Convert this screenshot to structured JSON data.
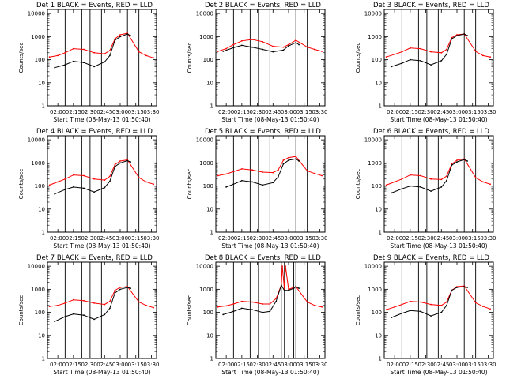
{
  "figure": {
    "ylabel": "Counts/sec",
    "xlabel": "Start Time (08-May-13 01:50:40)",
    "x_ticks": [
      "02:00",
      "02:15",
      "02:30",
      "02:45",
      "03:00",
      "03:15",
      "03:30"
    ],
    "y_ticks": [
      "1",
      "10",
      "100",
      "1000",
      "10000"
    ],
    "colors": {
      "events": "#000000",
      "lld": "#ff0000"
    }
  },
  "chart_data": [
    {
      "type": "line",
      "title": "Det 1  BLACK = Events, RED = LLD",
      "xlabel": "Start Time (08-May-13 01:50:40)",
      "ylabel": "Counts/sec",
      "x_range": [
        "01:50",
        "03:35"
      ],
      "y_range": [
        1,
        15000
      ],
      "y_scale": "log",
      "vertical_markers": [
        "02:07",
        "02:23",
        "02:31",
        "02:42",
        "03:07",
        "03:18"
      ],
      "series": [
        {
          "name": "Events",
          "color": "#000000",
          "x": [
            "01:57",
            "02:07",
            "02:15",
            "02:25",
            "02:35",
            "02:45",
            "02:50",
            "02:55",
            "03:00",
            "03:07",
            "03:10"
          ],
          "y": [
            45,
            60,
            85,
            75,
            50,
            80,
            150,
            700,
            1000,
            1300,
            1100
          ]
        },
        {
          "name": "LLD",
          "color": "#ff0000",
          "x": [
            "01:52",
            "02:00",
            "02:07",
            "02:15",
            "02:25",
            "02:35",
            "02:45",
            "02:50",
            "02:55",
            "03:00",
            "03:07",
            "03:18",
            "03:25",
            "03:32"
          ],
          "y": [
            130,
            150,
            200,
            300,
            280,
            200,
            180,
            250,
            800,
            1200,
            1400,
            220,
            150,
            120
          ]
        }
      ]
    },
    {
      "type": "line",
      "title": "Det 2  BLACK = Events, RED = LLD",
      "xlabel": "Start Time (08-May-13 01:50:40)",
      "ylabel": "Counts/sec",
      "x_range": [
        "01:50",
        "03:35"
      ],
      "y_range": [
        1,
        15000
      ],
      "y_scale": "log",
      "vertical_markers": [
        "02:07",
        "02:23",
        "02:31",
        "02:42",
        "03:07",
        "03:18"
      ],
      "series": [
        {
          "name": "Events",
          "color": "#000000",
          "x": [
            "01:57",
            "02:07",
            "02:15",
            "02:25",
            "02:35",
            "02:45",
            "02:55",
            "03:00",
            "03:07",
            "03:10"
          ],
          "y": [
            230,
            330,
            420,
            350,
            280,
            220,
            260,
            400,
            550,
            450
          ]
        },
        {
          "name": "LLD",
          "color": "#ff0000",
          "x": [
            "01:52",
            "02:00",
            "02:07",
            "02:15",
            "02:25",
            "02:35",
            "02:45",
            "02:55",
            "03:00",
            "03:07",
            "03:18",
            "03:25",
            "03:32"
          ],
          "y": [
            230,
            300,
            450,
            650,
            750,
            600,
            380,
            350,
            450,
            700,
            350,
            280,
            230
          ]
        }
      ]
    },
    {
      "type": "line",
      "title": "Det 3  BLACK = Events, RED = LLD",
      "xlabel": "Start Time (08-May-13 01:50:40)",
      "ylabel": "Counts/sec",
      "x_range": [
        "01:50",
        "03:35"
      ],
      "y_range": [
        1,
        15000
      ],
      "y_scale": "log",
      "vertical_markers": [
        "02:07",
        "02:23",
        "02:31",
        "02:42",
        "03:07",
        "03:18"
      ],
      "series": [
        {
          "name": "Events",
          "color": "#000000",
          "x": [
            "01:57",
            "02:07",
            "02:15",
            "02:25",
            "02:35",
            "02:45",
            "02:50",
            "02:55",
            "03:00",
            "03:07",
            "03:10"
          ],
          "y": [
            50,
            70,
            100,
            90,
            60,
            90,
            170,
            800,
            1100,
            1300,
            1100
          ]
        },
        {
          "name": "LLD",
          "color": "#ff0000",
          "x": [
            "01:52",
            "02:00",
            "02:07",
            "02:15",
            "02:25",
            "02:35",
            "02:45",
            "02:50",
            "02:55",
            "03:00",
            "03:07",
            "03:18",
            "03:25",
            "03:32"
          ],
          "y": [
            130,
            170,
            220,
            320,
            300,
            220,
            200,
            280,
            900,
            1200,
            1300,
            230,
            150,
            130
          ]
        }
      ]
    },
    {
      "type": "line",
      "title": "Det 4  BLACK = Events, RED = LLD",
      "xlabel": "Start Time (08-May-13 01:50:40)",
      "ylabel": "Counts/sec",
      "x_range": [
        "01:50",
        "03:35"
      ],
      "y_range": [
        1,
        15000
      ],
      "y_scale": "log",
      "vertical_markers": [
        "02:07",
        "02:23",
        "02:31",
        "02:42",
        "03:07",
        "03:18"
      ],
      "series": [
        {
          "name": "Events",
          "color": "#000000",
          "x": [
            "01:57",
            "02:07",
            "02:15",
            "02:25",
            "02:35",
            "02:45",
            "02:50",
            "02:55",
            "03:00",
            "03:07",
            "03:10"
          ],
          "y": [
            45,
            70,
            90,
            80,
            55,
            85,
            160,
            700,
            1000,
            1250,
            1100
          ]
        },
        {
          "name": "LLD",
          "color": "#ff0000",
          "x": [
            "01:52",
            "02:00",
            "02:07",
            "02:15",
            "02:25",
            "02:35",
            "02:45",
            "02:50",
            "02:55",
            "03:00",
            "03:07",
            "03:18",
            "03:25",
            "03:32"
          ],
          "y": [
            110,
            150,
            200,
            300,
            280,
            200,
            180,
            260,
            850,
            1200,
            1350,
            230,
            150,
            120
          ]
        }
      ]
    },
    {
      "type": "line",
      "title": "Det 5  BLACK = Events, RED = LLD",
      "xlabel": "Start Time (08-May-13 01:50:40)",
      "ylabel": "Counts/sec",
      "x_range": [
        "01:50",
        "03:35"
      ],
      "y_range": [
        1,
        15000
      ],
      "y_scale": "log",
      "vertical_markers": [
        "02:07",
        "02:23",
        "02:31",
        "02:42",
        "03:07",
        "03:18"
      ],
      "series": [
        {
          "name": "Events",
          "color": "#000000",
          "x": [
            "02:00",
            "02:07",
            "02:15",
            "02:25",
            "02:35",
            "02:45",
            "02:50",
            "02:55",
            "03:00",
            "03:07",
            "03:10"
          ],
          "y": [
            90,
            120,
            170,
            150,
            110,
            140,
            250,
            900,
            1300,
            1500,
            1200
          ]
        },
        {
          "name": "LLD",
          "color": "#ff0000",
          "x": [
            "01:52",
            "02:00",
            "02:07",
            "02:15",
            "02:25",
            "02:35",
            "02:45",
            "02:50",
            "02:55",
            "03:00",
            "03:07",
            "03:18",
            "03:25",
            "03:32"
          ],
          "y": [
            280,
            330,
            420,
            550,
            500,
            400,
            380,
            500,
            1300,
            1700,
            1900,
            450,
            350,
            280
          ]
        }
      ]
    },
    {
      "type": "line",
      "title": "Det 6  BLACK = Events, RED = LLD",
      "xlabel": "Start Time (08-May-13 01:50:40)",
      "ylabel": "Counts/sec",
      "x_range": [
        "01:50",
        "03:35"
      ],
      "y_range": [
        1,
        15000
      ],
      "y_scale": "log",
      "vertical_markers": [
        "02:07",
        "02:23",
        "02:31",
        "02:42",
        "03:07",
        "03:18"
      ],
      "series": [
        {
          "name": "Events",
          "color": "#000000",
          "x": [
            "01:57",
            "02:07",
            "02:15",
            "02:25",
            "02:35",
            "02:45",
            "02:50",
            "02:55",
            "03:00",
            "03:07",
            "03:10"
          ],
          "y": [
            50,
            75,
            100,
            90,
            60,
            90,
            170,
            800,
            1100,
            1400,
            1200
          ]
        },
        {
          "name": "LLD",
          "color": "#ff0000",
          "x": [
            "01:52",
            "02:00",
            "02:07",
            "02:15",
            "02:25",
            "02:35",
            "02:45",
            "02:50",
            "02:55",
            "03:00",
            "03:07",
            "03:18",
            "03:25",
            "03:32"
          ],
          "y": [
            110,
            150,
            200,
            300,
            280,
            200,
            190,
            270,
            900,
            1300,
            1500,
            230,
            150,
            120
          ]
        }
      ]
    },
    {
      "type": "line",
      "title": "Det 7  BLACK = Events, RED = LLD",
      "xlabel": "Start Time (08-May-13 01:50:40)",
      "ylabel": "Counts/sec",
      "x_range": [
        "01:50",
        "03:35"
      ],
      "y_range": [
        1,
        15000
      ],
      "y_scale": "log",
      "vertical_markers": [
        "02:07",
        "02:23",
        "02:31",
        "02:42",
        "03:07",
        "03:18"
      ],
      "series": [
        {
          "name": "Events",
          "color": "#000000",
          "x": [
            "01:57",
            "02:07",
            "02:15",
            "02:25",
            "02:35",
            "02:45",
            "02:50",
            "02:55",
            "03:00",
            "03:07",
            "03:10"
          ],
          "y": [
            40,
            65,
            85,
            75,
            50,
            80,
            150,
            700,
            1000,
            1200,
            1100
          ]
        },
        {
          "name": "LLD",
          "color": "#ff0000",
          "x": [
            "01:52",
            "02:00",
            "02:07",
            "02:15",
            "02:25",
            "02:35",
            "02:45",
            "02:50",
            "02:55",
            "03:00",
            "03:07",
            "03:18",
            "03:25",
            "03:32"
          ],
          "y": [
            180,
            200,
            250,
            350,
            320,
            250,
            220,
            300,
            900,
            1200,
            1300,
            280,
            200,
            160
          ]
        }
      ]
    },
    {
      "type": "line",
      "title": "Det 8  BLACK = Events, RED = LLD",
      "xlabel": "Start Time (08-May-13 01:50:40)",
      "ylabel": "Counts/sec",
      "x_range": [
        "01:50",
        "03:35"
      ],
      "y_range": [
        1,
        15000
      ],
      "y_scale": "log",
      "vertical_markers": [
        "02:07",
        "02:23",
        "02:31",
        "02:42",
        "02:53",
        "02:56",
        "03:05",
        "03:07",
        "03:18"
      ],
      "series": [
        {
          "name": "Events",
          "color": "#000000",
          "x": [
            "01:57",
            "02:07",
            "02:15",
            "02:25",
            "02:35",
            "02:42",
            "02:48",
            "02:53",
            "02:56",
            "03:00",
            "03:05",
            "03:07",
            "03:10"
          ],
          "y": [
            80,
            110,
            150,
            130,
            100,
            110,
            300,
            1500,
            900,
            900,
            1100,
            1300,
            1100
          ]
        },
        {
          "name": "LLD",
          "color": "#ff0000",
          "x": [
            "01:52",
            "02:00",
            "02:07",
            "02:15",
            "02:25",
            "02:35",
            "02:42",
            "02:48",
            "02:53",
            "02:54",
            "02:56",
            "02:57",
            "03:00",
            "03:05",
            "03:07",
            "03:18",
            "03:25",
            "03:32"
          ],
          "y": [
            170,
            190,
            230,
            300,
            280,
            230,
            230,
            400,
            1500,
            10000,
            1000,
            10000,
            1000,
            1200,
            1300,
            280,
            200,
            170
          ]
        }
      ]
    },
    {
      "type": "line",
      "title": "Det 9  BLACK = Events, RED = LLD",
      "xlabel": "Start Time (08-May-13 01:50:40)",
      "ylabel": "Counts/sec",
      "x_range": [
        "01:50",
        "03:35"
      ],
      "y_range": [
        1,
        15000
      ],
      "y_scale": "log",
      "vertical_markers": [
        "02:07",
        "02:23",
        "02:31",
        "02:42",
        "03:07",
        "03:18"
      ],
      "series": [
        {
          "name": "Events",
          "color": "#000000",
          "x": [
            "01:57",
            "02:07",
            "02:15",
            "02:25",
            "02:35",
            "02:45",
            "02:50",
            "02:55",
            "03:00",
            "03:07",
            "03:10"
          ],
          "y": [
            60,
            90,
            120,
            110,
            70,
            100,
            200,
            900,
            1200,
            1300,
            1200
          ]
        },
        {
          "name": "LLD",
          "color": "#ff0000",
          "x": [
            "01:52",
            "02:00",
            "02:07",
            "02:15",
            "02:25",
            "02:35",
            "02:45",
            "02:50",
            "02:55",
            "03:00",
            "03:07",
            "03:18",
            "03:25",
            "03:32"
          ],
          "y": [
            130,
            170,
            220,
            300,
            280,
            220,
            200,
            280,
            900,
            1300,
            1400,
            260,
            180,
            140
          ]
        }
      ]
    }
  ]
}
